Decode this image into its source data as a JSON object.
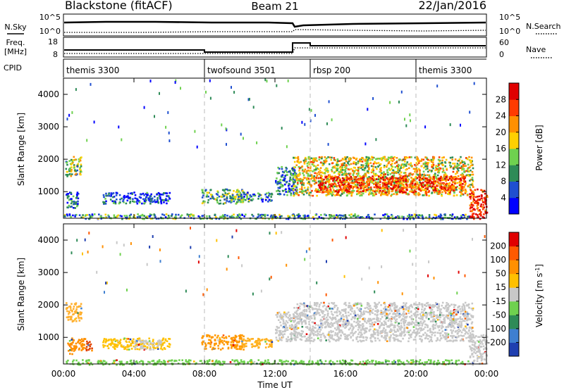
{
  "header": {
    "station": "Blackstone (fitACF)",
    "beam": "Beam 21",
    "date": "22/Jan/2016"
  },
  "summary_panels": {
    "nsky_label": "N.Sky",
    "nsky_ticks": [
      "10^5",
      "10^0"
    ],
    "nsearch_label": "N.Search",
    "nsearch_ticks": [
      "10^5",
      "10^0"
    ],
    "freq_label": "Freq.",
    "freq_unit": "[MHz]",
    "freq_ticks": [
      "18",
      "8"
    ],
    "nave_label": "Nave",
    "nave_ticks": [
      "60",
      "0"
    ],
    "cpid_label": "CPID",
    "cpid_segments": [
      {
        "label": "themis 3300",
        "start_hour": 0
      },
      {
        "label": "twofsound 3501",
        "start_hour": 8
      },
      {
        "label": "rbsp 200",
        "start_hour": 14
      },
      {
        "label": "themis 3300",
        "start_hour": 20
      }
    ]
  },
  "chart_data": [
    {
      "type": "heatmap",
      "title": "Power",
      "ylabel": "Slant Range [km]",
      "xlabel": "",
      "x_range_hours": [
        0,
        24
      ],
      "ylim": [
        180,
        4500
      ],
      "y_ticks": [
        "1000",
        "2000",
        "3000",
        "4000"
      ],
      "colorbar": {
        "label": "Power [dB]",
        "ticks": [
          "4",
          "8",
          "12",
          "16",
          "20",
          "24",
          "28"
        ],
        "colors": [
          "#0000ff",
          "#1f4fd0",
          "#2e8b57",
          "#6fd14f",
          "#ffd000",
          "#ff9000",
          "#ff3b00",
          "#e00000"
        ]
      },
      "regions": [
        {
          "x0": 0.1,
          "x1": 1.0,
          "y0": 1500,
          "y1": 2100,
          "level": 0.45
        },
        {
          "x0": 0.1,
          "x1": 0.8,
          "y0": 500,
          "y1": 1000,
          "level": 0.2
        },
        {
          "x0": 2.2,
          "x1": 6.0,
          "y0": 650,
          "y1": 1000,
          "level": 0.18
        },
        {
          "x0": 7.8,
          "x1": 10.2,
          "y0": 650,
          "y1": 1100,
          "level": 0.38
        },
        {
          "x0": 10.0,
          "x1": 11.8,
          "y0": 700,
          "y1": 1000,
          "level": 0.3
        },
        {
          "x0": 12.0,
          "x1": 13.2,
          "y0": 900,
          "y1": 1800,
          "level": 0.25
        },
        {
          "x0": 13.0,
          "x1": 23.2,
          "y0": 900,
          "y1": 2100,
          "level": 0.55
        },
        {
          "x0": 14.3,
          "x1": 22.8,
          "y0": 1000,
          "y1": 1500,
          "level": 0.85
        },
        {
          "x0": 23.0,
          "x1": 24.0,
          "y0": 180,
          "y1": 1100,
          "level": 0.9
        },
        {
          "x0": 0.0,
          "x1": 23.0,
          "y0": 180,
          "y1": 330,
          "level": 0.3
        }
      ]
    },
    {
      "type": "heatmap",
      "title": "Velocity",
      "ylabel": "Slant Range [km]",
      "xlabel": "Time UT",
      "x_range_hours": [
        0,
        24
      ],
      "x_ticks": [
        "00:00",
        "04:00",
        "08:00",
        "12:00",
        "16:00",
        "20:00",
        "00:00"
      ],
      "ylim": [
        180,
        4500
      ],
      "y_ticks": [
        "1000",
        "2000",
        "3000",
        "4000"
      ],
      "colorbar": {
        "label": "Velocity [m s^-1]",
        "ticks": [
          "200",
          "100",
          "50",
          "15",
          "-15",
          "-50",
          "-100",
          "-200"
        ],
        "colors": [
          "#1f3fb0",
          "#3f7fd0",
          "#2e8b57",
          "#6fd14f",
          "#c8c8c8",
          "#ffc000",
          "#ff9000",
          "#ff5a00",
          "#e00000"
        ]
      },
      "regions": [
        {
          "x0": 0.1,
          "x1": 1.0,
          "y0": 1500,
          "y1": 2100,
          "color": "#ffb030"
        },
        {
          "x0": 0.2,
          "x1": 1.2,
          "y0": 500,
          "y1": 1000,
          "color": "#ff9000"
        },
        {
          "x0": 1.2,
          "x1": 1.6,
          "y0": 600,
          "y1": 900,
          "color": "#e04000"
        },
        {
          "x0": 2.2,
          "x1": 6.0,
          "y0": 650,
          "y1": 1000,
          "color": "#ffc000"
        },
        {
          "x0": 4.0,
          "x1": 5.5,
          "y0": 650,
          "y1": 950,
          "color": "#c8c8c8"
        },
        {
          "x0": 7.8,
          "x1": 10.2,
          "y0": 650,
          "y1": 1100,
          "color": "#ff9800"
        },
        {
          "x0": 10.0,
          "x1": 11.8,
          "y0": 700,
          "y1": 1000,
          "color": "#ffb020"
        },
        {
          "x0": 12.0,
          "x1": 13.2,
          "y0": 900,
          "y1": 1800,
          "color": "#c8c8c8"
        },
        {
          "x0": 13.0,
          "x1": 23.2,
          "y0": 900,
          "y1": 2100,
          "color": "#c8c8c8"
        },
        {
          "x0": 23.0,
          "x1": 24.0,
          "y0": 180,
          "y1": 1100,
          "color": "#c8c8c8"
        },
        {
          "x0": 0.0,
          "x1": 23.0,
          "y0": 180,
          "y1": 330,
          "color": "#6fd14f"
        }
      ]
    }
  ]
}
